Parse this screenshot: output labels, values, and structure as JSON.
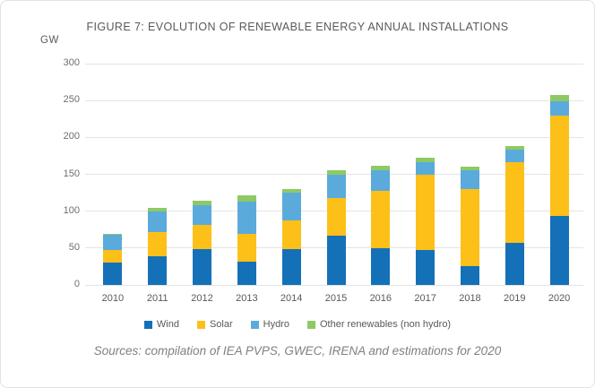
{
  "figure": {
    "title": "FIGURE 7: EVOLUTION OF RENEWABLE ENERGY ANNUAL INSTALLATIONS",
    "unit_label": "GW",
    "source_note": "Sources: compilation of IEA PVPS, GWEC, IRENA and estimations for 2020"
  },
  "chart_data": {
    "type": "bar",
    "stacked": true,
    "title": "FIGURE 7: EVOLUTION OF RENEWABLE ENERGY ANNUAL INSTALLATIONS",
    "ylabel": "GW",
    "xlabel": "",
    "categories": [
      "2010",
      "2011",
      "2012",
      "2013",
      "2014",
      "2015",
      "2016",
      "2017",
      "2018",
      "2019",
      "2020"
    ],
    "series": [
      {
        "name": "Wind",
        "color": "#1471b8",
        "values": [
          30,
          39,
          48,
          31,
          48,
          67,
          50,
          47,
          26,
          57,
          93
        ]
      },
      {
        "name": "Solar",
        "color": "#fcc019",
        "values": [
          17,
          33,
          33,
          38,
          40,
          51,
          77,
          102,
          104,
          109,
          136
        ]
      },
      {
        "name": "Hydro",
        "color": "#5aabdc",
        "values": [
          21,
          28,
          27,
          44,
          37,
          32,
          28,
          17,
          26,
          17,
          20
        ]
      },
      {
        "name": "Other renewables (non hydro)",
        "color": "#8fc963",
        "values": [
          1,
          4,
          6,
          8,
          5,
          6,
          7,
          7,
          4,
          5,
          8
        ]
      }
    ],
    "totals": [
      69,
      104,
      114,
      121,
      130,
      156,
      162,
      173,
      160,
      188,
      257
    ],
    "ylim": [
      0,
      300
    ],
    "yticks": [
      0,
      50,
      100,
      150,
      200,
      250,
      300
    ],
    "grid": true,
    "legend_position": "bottom",
    "source_note": "Sources: compilation of IEA PVPS, GWEC, IRENA and estimations for 2020",
    "colors": {
      "gridline": "#e4e4e4",
      "title_text": "#595959",
      "tick_text": "#6e6e6e",
      "source_text": "#808080"
    }
  }
}
